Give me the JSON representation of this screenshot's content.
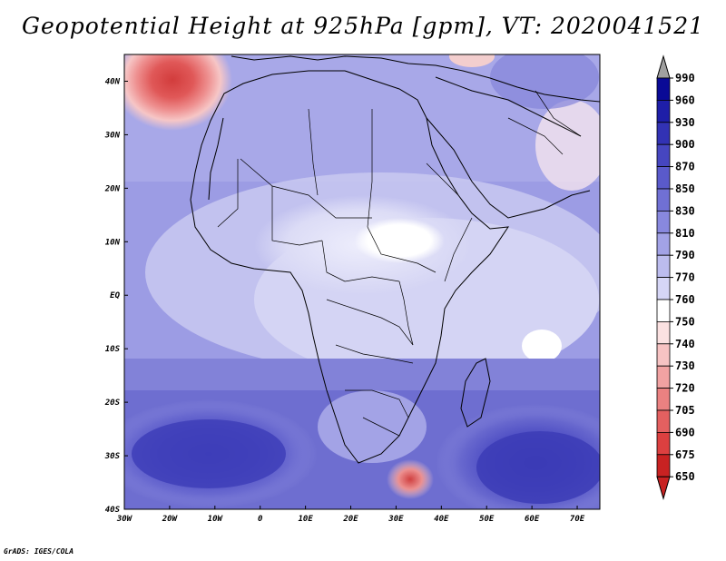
{
  "title": "Geopotential Height at 925hPa [gpm], VT: 2020041521",
  "credit": "GrADS: IGES/COLA",
  "map": {
    "lon_range": [
      -30,
      75
    ],
    "lat_range": [
      -40,
      45
    ],
    "x_ticks": [
      "30W",
      "20W",
      "10W",
      "0",
      "10E",
      "20E",
      "30E",
      "40E",
      "50E",
      "60E",
      "70E"
    ],
    "y_ticks": [
      "40N",
      "30N",
      "20N",
      "10N",
      "EQ",
      "10S",
      "20S",
      "30S",
      "40S"
    ],
    "features": [
      {
        "name": "low-azores-region",
        "lon": -17,
        "lat": 38,
        "value": 705
      },
      {
        "name": "low-southeast-africa",
        "lon": 32,
        "lat": -34,
        "value": 720
      },
      {
        "name": "high-south-atlantic",
        "lon": -17,
        "lat": -29,
        "value": 900
      },
      {
        "name": "high-south-indian",
        "lon": 60,
        "lat": -35,
        "value": 900
      }
    ]
  },
  "colorbar": {
    "levels": [
      "990",
      "960",
      "930",
      "900",
      "870",
      "850",
      "830",
      "810",
      "790",
      "770",
      "760",
      "750",
      "740",
      "730",
      "720",
      "705",
      "690",
      "675",
      "650"
    ],
    "colors": [
      "#0a0a96",
      "#1e1ea8",
      "#3232b4",
      "#4646c0",
      "#5a5acb",
      "#7070d4",
      "#8888de",
      "#a2a2e6",
      "#bcbcee",
      "#d6d6f6",
      "#ffffff",
      "#fbe1e1",
      "#f7c3c3",
      "#f1a2a2",
      "#eb8181",
      "#e46060",
      "#dc4040",
      "#c82222",
      "#a0a0a0"
    ],
    "top_arrow_color": "#a0a0a0",
    "bottom_arrow_color": "#c82222"
  }
}
